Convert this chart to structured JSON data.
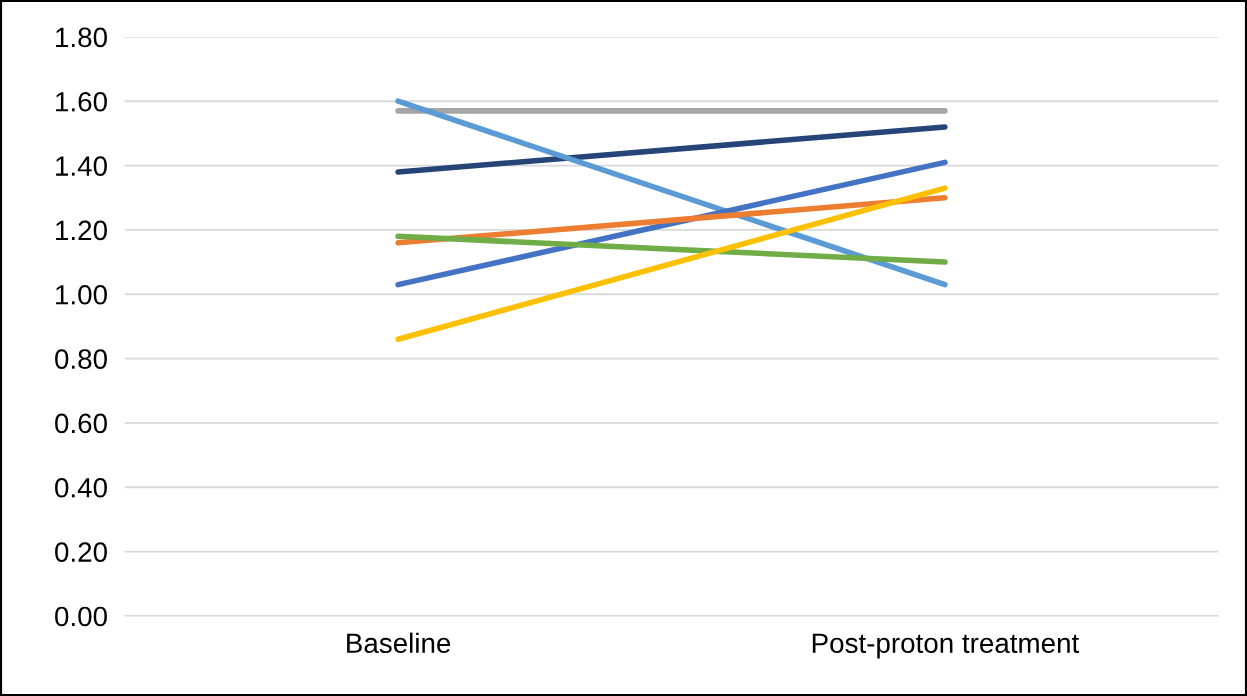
{
  "chart_data": {
    "type": "line",
    "categories": [
      "Baseline",
      "Post-proton treatment"
    ],
    "series": [
      {
        "color": "#a5a5a5",
        "values": [
          1.57,
          1.57
        ]
      },
      {
        "color": "#264478",
        "values": [
          1.38,
          1.52
        ]
      },
      {
        "color": "#5b9bd5",
        "values": [
          1.6,
          1.03
        ]
      },
      {
        "color": "#4472c4",
        "values": [
          1.03,
          1.41
        ]
      },
      {
        "color": "#ed7d31",
        "values": [
          1.16,
          1.3
        ]
      },
      {
        "color": "#70ad47",
        "values": [
          1.18,
          1.1
        ]
      },
      {
        "color": "#ffc000",
        "values": [
          0.86,
          1.33
        ]
      }
    ],
    "ylim": [
      0,
      1.8
    ],
    "yticks": [
      {
        "value": 0,
        "label": "0.00"
      },
      {
        "value": 0.2,
        "label": "0.20"
      },
      {
        "value": 0.4,
        "label": "0.40"
      },
      {
        "value": 0.6,
        "label": "0.60"
      },
      {
        "value": 0.8,
        "label": "0.80"
      },
      {
        "value": 1.0,
        "label": "1.00"
      },
      {
        "value": 1.2,
        "label": "1.20"
      },
      {
        "value": 1.4,
        "label": "1.40"
      },
      {
        "value": 1.6,
        "label": "1.60"
      },
      {
        "value": 1.8,
        "label": "1.80"
      }
    ],
    "grid": "y",
    "marker": "none",
    "line_style": "solid"
  }
}
